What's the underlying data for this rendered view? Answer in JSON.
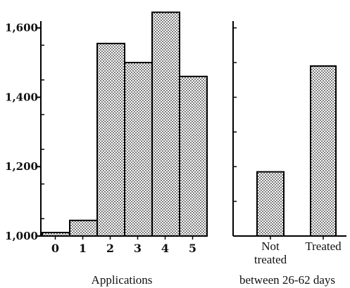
{
  "chart_data": [
    {
      "type": "bar",
      "categories": [
        "0",
        "1",
        "2",
        "3",
        "4",
        "5"
      ],
      "values": [
        1010,
        1045,
        1555,
        1500,
        1645,
        1460
      ],
      "xlabel": "Applications",
      "ylabel": "",
      "ylim": [
        1000,
        1650
      ],
      "yticks": [
        "1,000",
        "1,200",
        "1,400",
        "1,600"
      ],
      "ytick_values": [
        1000,
        1200,
        1400,
        1600
      ],
      "grid": false,
      "bar_fill": "dotted-hatch"
    },
    {
      "type": "bar",
      "categories": [
        "Not treated",
        "Treated"
      ],
      "values": [
        1185,
        1490
      ],
      "xlabel": "between 26-62 days",
      "ylabel": "",
      "ylim": [
        1000,
        1650
      ],
      "grid": false,
      "bar_fill": "dotted-hatch"
    }
  ]
}
